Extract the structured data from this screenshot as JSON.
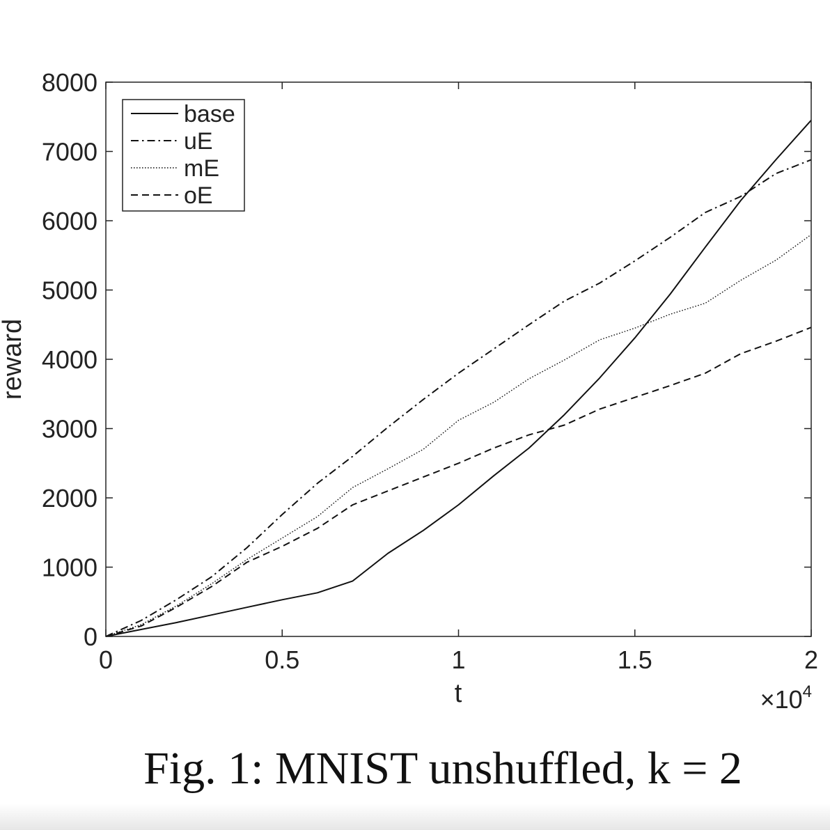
{
  "caption": "Fig. 1: MNIST unshuffled, k = 2",
  "chart_data": {
    "type": "line",
    "title": "",
    "xlabel": "t",
    "ylabel": "reward",
    "x_multiplier": "×10",
    "x_multiplier_exp": "4",
    "xlim": [
      0,
      2
    ],
    "ylim": [
      0,
      8000
    ],
    "xticks": [
      0,
      0.5,
      1,
      1.5,
      2
    ],
    "xtick_labels": [
      "0",
      "0.5",
      "1",
      "1.5",
      "2"
    ],
    "yticks": [
      0,
      1000,
      2000,
      3000,
      4000,
      5000,
      6000,
      7000,
      8000
    ],
    "ytick_labels": [
      "0",
      "1000",
      "2000",
      "3000",
      "4000",
      "5000",
      "6000",
      "7000",
      "8000"
    ],
    "grid": false,
    "legend_position": "top-left",
    "line_color": "#111111",
    "series": [
      {
        "name": "base",
        "style": "solid",
        "x": [
          0,
          0.1,
          0.2,
          0.3,
          0.4,
          0.5,
          0.6,
          0.7,
          0.8,
          0.9,
          1.0,
          1.1,
          1.2,
          1.3,
          1.4,
          1.5,
          1.6,
          1.7,
          1.8,
          1.9,
          2.0
        ],
        "y": [
          0,
          100,
          200,
          310,
          420,
          530,
          630,
          800,
          1200,
          1530,
          1900,
          2320,
          2720,
          3200,
          3730,
          4310,
          4940,
          5620,
          6290,
          6880,
          7450
        ]
      },
      {
        "name": "uE",
        "style": "dashdot",
        "x": [
          0,
          0.1,
          0.2,
          0.3,
          0.4,
          0.5,
          0.6,
          0.7,
          0.8,
          0.9,
          1.0,
          1.1,
          1.2,
          1.3,
          1.4,
          1.5,
          1.6,
          1.7,
          1.8,
          1.9,
          2.0
        ],
        "y": [
          0,
          230,
          530,
          860,
          1280,
          1760,
          2210,
          2600,
          3020,
          3420,
          3800,
          4150,
          4500,
          4840,
          5100,
          5420,
          5760,
          6120,
          6350,
          6680,
          6880
        ]
      },
      {
        "name": "mE",
        "style": "dotted",
        "x": [
          0,
          0.1,
          0.2,
          0.3,
          0.4,
          0.5,
          0.6,
          0.7,
          0.8,
          0.9,
          1.0,
          1.1,
          1.2,
          1.3,
          1.4,
          1.5,
          1.6,
          1.7,
          1.8,
          1.9,
          2.0
        ],
        "y": [
          0,
          170,
          440,
          760,
          1110,
          1420,
          1730,
          2150,
          2420,
          2700,
          3120,
          3380,
          3720,
          3990,
          4280,
          4450,
          4650,
          4810,
          5140,
          5430,
          5800
        ]
      },
      {
        "name": "oE",
        "style": "dashed",
        "x": [
          0,
          0.1,
          0.2,
          0.3,
          0.4,
          0.5,
          0.6,
          0.7,
          0.8,
          0.9,
          1.0,
          1.1,
          1.2,
          1.3,
          1.4,
          1.5,
          1.6,
          1.7,
          1.8,
          1.9,
          2.0
        ],
        "y": [
          0,
          150,
          420,
          720,
          1070,
          1300,
          1560,
          1900,
          2100,
          2300,
          2500,
          2720,
          2910,
          3050,
          3280,
          3450,
          3620,
          3800,
          4080,
          4260,
          4460
        ]
      }
    ]
  }
}
